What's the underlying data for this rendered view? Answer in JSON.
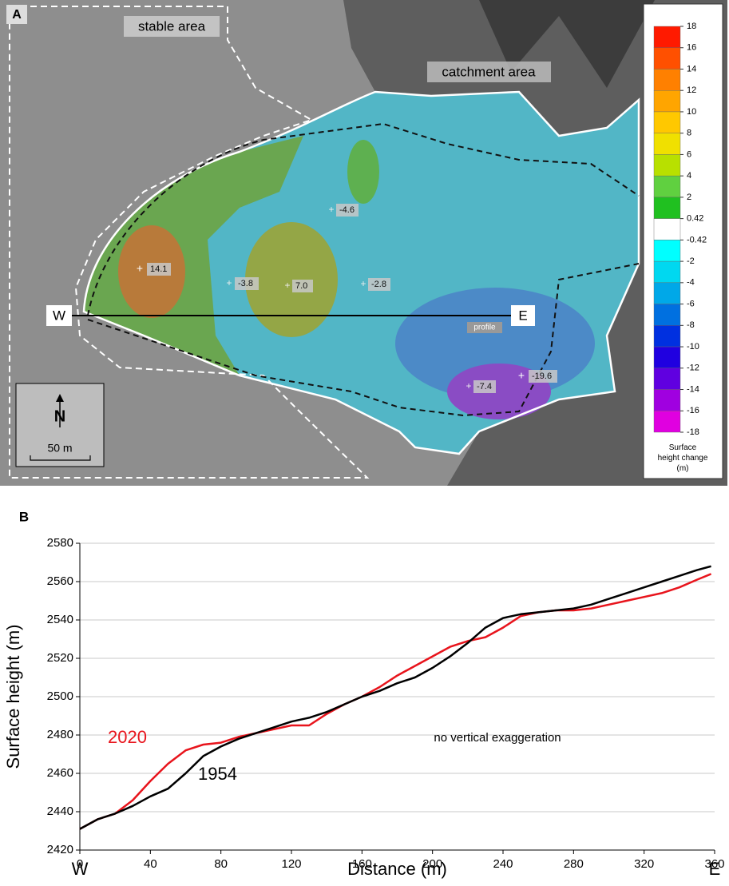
{
  "panel_a": {
    "panel_label": "A",
    "stable_label": "stable area",
    "catchment_label": "catchment area",
    "spots": [
      "14.1",
      "-3.8",
      "7.0",
      "-2.8",
      "-4.6",
      "-7.4",
      "-19.6"
    ],
    "profile_start": "W",
    "profile_end": "E",
    "profile_label": "profile",
    "north_label": "N",
    "scale_label": "50 m",
    "colorbar": {
      "title": "Surface height change (m)",
      "ticks": [
        18,
        16,
        14,
        12,
        10,
        8,
        6,
        4,
        2,
        0.42,
        -0.42,
        -2,
        -4,
        -6,
        -8,
        -10,
        -12,
        -14,
        -16,
        -18
      ],
      "colors": [
        "#ff1a00",
        "#ff5000",
        "#ff8000",
        "#ffa500",
        "#ffc800",
        "#f0e000",
        "#b8e000",
        "#60d040",
        "#20c020",
        "#ffffff",
        "#00ffff",
        "#00d8f0",
        "#00a8e8",
        "#0070e0",
        "#0030e0",
        "#2000e0",
        "#6000e0",
        "#a000e0",
        "#e000e0"
      ]
    }
  },
  "chart_data": {
    "type": "line",
    "panel_label": "B",
    "x_label": "Distance (m)",
    "y_label": "Surface height (m)",
    "x_start_label": "W",
    "x_end_label": "E",
    "annotation": "no vertical exaggeration",
    "x": [
      0,
      10,
      20,
      30,
      40,
      50,
      60,
      70,
      80,
      90,
      100,
      110,
      120,
      130,
      140,
      150,
      160,
      170,
      180,
      190,
      200,
      210,
      220,
      230,
      240,
      250,
      260,
      270,
      280,
      290,
      300,
      310,
      320,
      330,
      340,
      350,
      358
    ],
    "series": [
      {
        "name": "2020",
        "color": "#e8141c",
        "values": [
          2431,
          2436,
          2439,
          2446,
          2456,
          2465,
          2472,
          2475,
          2476,
          2479,
          2481,
          2483,
          2485,
          2485,
          2491,
          2496,
          2500,
          2505,
          2511,
          2516,
          2521,
          2526,
          2529,
          2531,
          2536,
          2542,
          2544,
          2545,
          2545,
          2546,
          2548,
          2550,
          2552,
          2554,
          2557,
          2561,
          2564
        ]
      },
      {
        "name": "1954",
        "color": "#000000",
        "values": [
          2431,
          2436,
          2439,
          2443,
          2448,
          2452,
          2460,
          2469,
          2474,
          2478,
          2481,
          2484,
          2487,
          2489,
          2492,
          2496,
          2500,
          2503,
          2507,
          2510,
          2515,
          2521,
          2528,
          2536,
          2541,
          2543,
          2544,
          2545,
          2546,
          2548,
          2551,
          2554,
          2557,
          2560,
          2563,
          2566,
          2568
        ]
      }
    ],
    "xlim": [
      0,
      360
    ],
    "xticks": [
      0,
      40,
      80,
      120,
      160,
      200,
      240,
      280,
      320,
      360
    ],
    "ylim": [
      2420,
      2580
    ],
    "yticks": [
      2420,
      2440,
      2460,
      2480,
      2500,
      2520,
      2540,
      2560,
      2580
    ],
    "grid": true
  }
}
